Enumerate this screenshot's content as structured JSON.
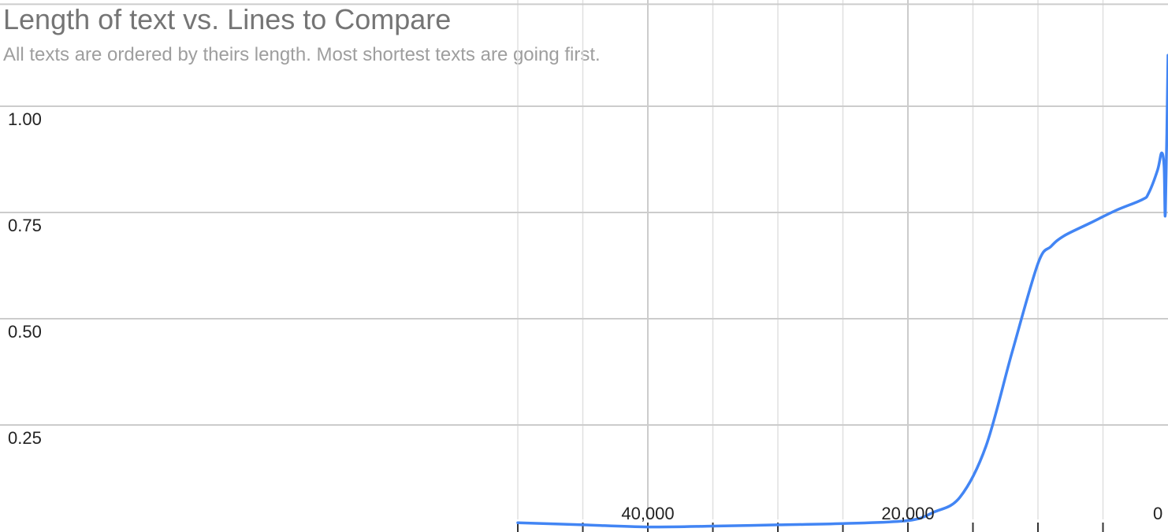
{
  "chart_data": {
    "type": "line",
    "title": "Length of text vs. Lines to Compare",
    "subtitle": "All texts are ordered by theirs length. Most shortest texts are going first.",
    "xlabel": "",
    "ylabel": "",
    "x_reversed": true,
    "xlim": [
      50000,
      0
    ],
    "ylim": [
      0,
      1.2
    ],
    "grid": true,
    "x_ticks": [
      {
        "value": 40000,
        "label": "40,000"
      },
      {
        "value": 20000,
        "label": "20,000"
      },
      {
        "value": 0,
        "label": "0"
      }
    ],
    "y_ticks": [
      {
        "value": 1.0,
        "label": "1.00"
      },
      {
        "value": 0.75,
        "label": "0.75"
      },
      {
        "value": 0.5,
        "label": "0.50"
      },
      {
        "value": 0.25,
        "label": "0.25"
      }
    ],
    "series": [
      {
        "color": "#4285f4",
        "x": [
          50000,
          45000,
          40000,
          35000,
          30000,
          25000,
          20000,
          18000,
          16000,
          14000,
          12000,
          10000,
          9000,
          8000,
          6000,
          4000,
          2000,
          1500,
          800,
          500,
          300,
          200,
          0
        ],
        "y": [
          0.02,
          0.015,
          0.01,
          0.012,
          0.015,
          0.018,
          0.025,
          0.045,
          0.08,
          0.2,
          0.42,
          0.63,
          0.67,
          0.695,
          0.725,
          0.755,
          0.78,
          0.795,
          0.85,
          0.89,
          0.86,
          0.75,
          1.12
        ]
      }
    ]
  }
}
